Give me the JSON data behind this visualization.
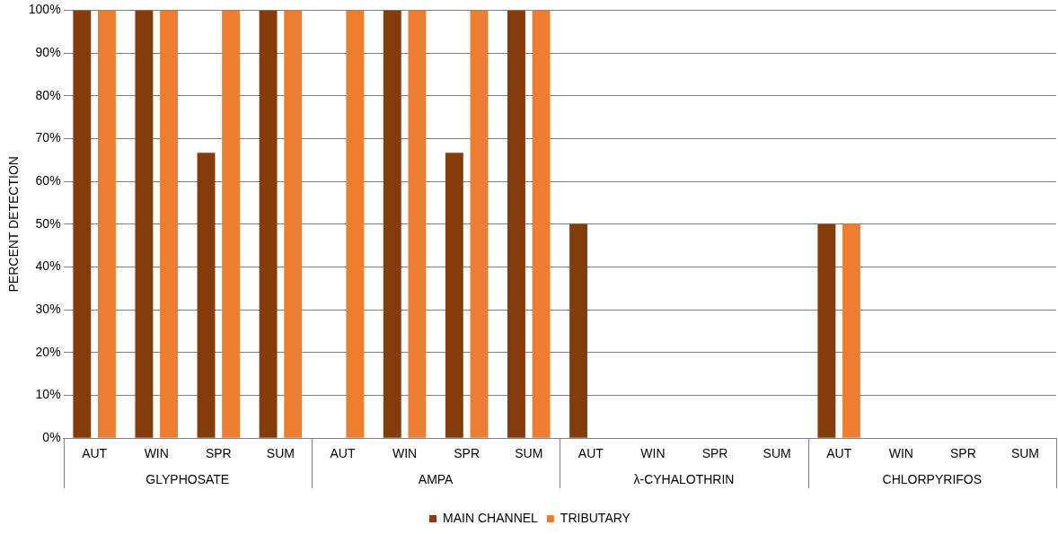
{
  "chart_data": {
    "type": "bar",
    "ylabel": "PERCENT DETECTION",
    "categories": [
      "AUT",
      "WIN",
      "SPR",
      "SUM",
      "AUT",
      "WIN",
      "SPR",
      "SUM",
      "AUT",
      "WIN",
      "SPR",
      "SUM",
      "AUT",
      "WIN",
      "SPR",
      "SUM"
    ],
    "annotations": [
      "GLYPHOSATE",
      "AMPA",
      "λ-CYHALOTHRIN",
      "CHLORPYRIFOS"
    ],
    "series": [
      {
        "name": "MAIN CHANNEL",
        "color": "#843c0c",
        "values": [
          100,
          100,
          66.7,
          100,
          0,
          100,
          66.7,
          100,
          50,
          0,
          0,
          0,
          50,
          0,
          0,
          0
        ]
      },
      {
        "name": "TRIBUTARY",
        "color": "#ed7d31",
        "values": [
          100,
          100,
          100,
          100,
          100,
          100,
          100,
          100,
          0,
          0,
          0,
          0,
          50,
          0,
          0,
          0
        ]
      }
    ],
    "ylim": [
      0,
      100
    ],
    "yticks": [
      {
        "value": 0,
        "label": "0%"
      },
      {
        "value": 10,
        "label": "10%"
      },
      {
        "value": 20,
        "label": "20%"
      },
      {
        "value": 30,
        "label": "30%"
      },
      {
        "value": 40,
        "label": "40%"
      },
      {
        "value": 50,
        "label": "50%"
      },
      {
        "value": 60,
        "label": "60%"
      },
      {
        "value": 70,
        "label": "70%"
      },
      {
        "value": 80,
        "label": "80%"
      },
      {
        "value": 90,
        "label": "90%"
      },
      {
        "value": 100,
        "label": "100%"
      }
    ],
    "grid": "y",
    "legend": "bottom"
  }
}
